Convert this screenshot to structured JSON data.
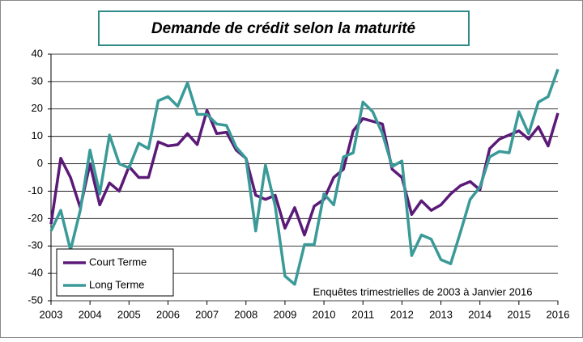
{
  "chart_data": {
    "type": "line",
    "title": "Demande de crédit selon la maturité",
    "annotation": "Enquêtes trimestrielles  de 2003 à Janvier  2016",
    "x": [
      2003,
      2003.25,
      2003.5,
      2003.75,
      2004,
      2004.25,
      2004.5,
      2004.75,
      2005,
      2005.25,
      2005.5,
      2005.75,
      2006,
      2006.25,
      2006.5,
      2006.75,
      2007,
      2007.25,
      2007.5,
      2007.75,
      2008,
      2008.25,
      2008.5,
      2008.75,
      2009,
      2009.25,
      2009.5,
      2009.75,
      2010,
      2010.25,
      2010.5,
      2010.75,
      2011,
      2011.25,
      2011.5,
      2011.75,
      2012,
      2012.25,
      2012.5,
      2012.75,
      2013,
      2013.25,
      2013.5,
      2013.75,
      2014,
      2014.25,
      2014.5,
      2014.75,
      2015,
      2015.25,
      2015.5,
      2015.75,
      2016
    ],
    "series": [
      {
        "name": "Court Terme",
        "color": "#5b1a78",
        "values": [
          -22,
          2,
          -5,
          -16,
          0,
          -15,
          -7,
          -10,
          -1,
          -5,
          -5,
          8,
          6.5,
          7,
          11,
          7,
          19.5,
          11,
          11.5,
          5,
          2,
          -11.5,
          -13,
          -11.5,
          -23.5,
          -16,
          -26,
          -15.5,
          -13,
          -5,
          -2,
          12,
          16.5,
          15.5,
          14.5,
          -2,
          -5,
          -18.5,
          -13.5,
          -17,
          -15,
          -11,
          -8,
          -6.5,
          -9.5,
          5.5,
          9,
          10.5,
          12,
          9,
          13.5,
          6.5,
          18.5
        ]
      },
      {
        "name": "Long Terme",
        "color": "#3a9a98",
        "values": [
          -24.5,
          -17,
          -31.5,
          -17,
          5,
          -11,
          10.5,
          0,
          -1.5,
          7.5,
          5.5,
          23,
          24.5,
          21,
          29.5,
          18,
          18,
          14.5,
          14,
          6,
          2,
          -24.5,
          -0.5,
          -15.5,
          -41,
          -44,
          -29.5,
          -29.5,
          -11,
          -15,
          2.5,
          4,
          22.5,
          19,
          11,
          -1,
          1,
          -33.5,
          -26,
          -27.5,
          -35,
          -36.5,
          -25,
          -13,
          -8.5,
          2.5,
          4.5,
          4,
          19,
          11,
          22.5,
          24.5,
          34.5
        ]
      }
    ],
    "xlim": [
      2003,
      2016
    ],
    "xticks": [
      2003,
      2004,
      2005,
      2006,
      2007,
      2008,
      2009,
      2010,
      2011,
      2012,
      2013,
      2014,
      2015,
      2016
    ],
    "ylim": [
      -50,
      40
    ],
    "yticks": [
      -50,
      -40,
      -30,
      -20,
      -10,
      0,
      10,
      20,
      30,
      40
    ],
    "grid": true
  }
}
